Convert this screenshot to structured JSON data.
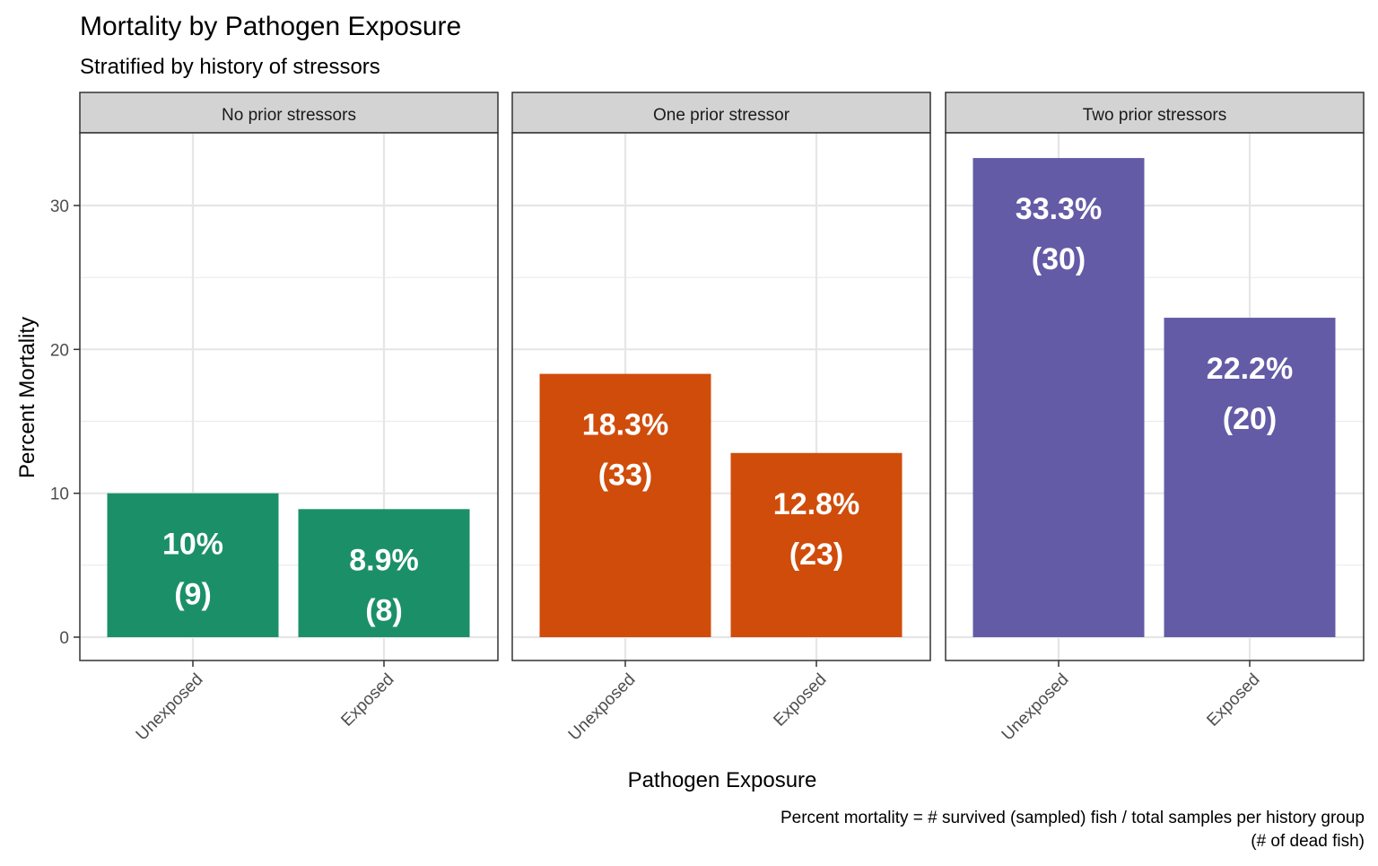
{
  "chart_data": {
    "type": "bar",
    "title": "Mortality by Pathogen Exposure",
    "subtitle": "Stratified by history of stressors",
    "xlabel": "Pathogen Exposure",
    "ylabel": "Percent Mortality",
    "caption_line1": "Percent mortality = # survived (sampled) fish / total samples per history group",
    "caption_line2": "(# of dead fish)",
    "ylim": [
      0,
      35
    ],
    "yticks": [
      0,
      10,
      20,
      30
    ],
    "grid": true,
    "categories": [
      "Unexposed",
      "Exposed"
    ],
    "facets": [
      {
        "label": "No prior stressors",
        "color": "#1b9068",
        "bars": [
          {
            "category": "Unexposed",
            "value": 10.0,
            "pct_label": "10%",
            "count_label": "(9)"
          },
          {
            "category": "Exposed",
            "value": 8.9,
            "pct_label": "8.9%",
            "count_label": "(8)"
          }
        ]
      },
      {
        "label": "One prior stressor",
        "color": "#d04c0a",
        "bars": [
          {
            "category": "Unexposed",
            "value": 18.3,
            "pct_label": "18.3%",
            "count_label": "(33)"
          },
          {
            "category": "Exposed",
            "value": 12.8,
            "pct_label": "12.8%",
            "count_label": "(23)"
          }
        ]
      },
      {
        "label": "Two prior stressors",
        "color": "#635ba6",
        "bars": [
          {
            "category": "Unexposed",
            "value": 33.3,
            "pct_label": "33.3%",
            "count_label": "(30)"
          },
          {
            "category": "Exposed",
            "value": 22.2,
            "pct_label": "22.2%",
            "count_label": "(20)"
          }
        ]
      }
    ]
  }
}
